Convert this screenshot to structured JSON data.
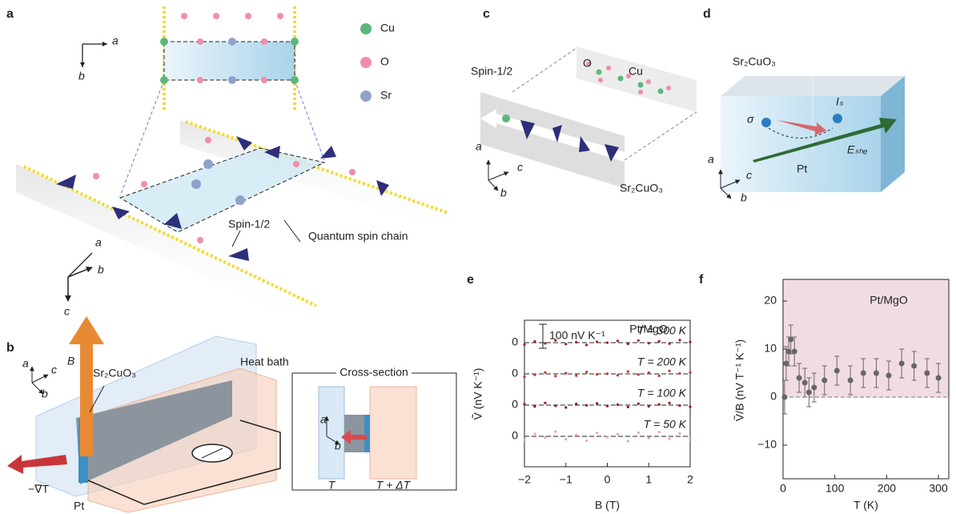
{
  "panel_labels": [
    "a",
    "b",
    "c",
    "d",
    "e",
    "f"
  ],
  "panel_a": {
    "legend": [
      {
        "label": "Cu",
        "color": "#5cb87a"
      },
      {
        "label": "O",
        "color": "#f28cab"
      },
      {
        "label": "Sr",
        "color": "#8ea2cc"
      }
    ],
    "axes_top": [
      "a",
      "b"
    ],
    "axes_bottom": [
      "a",
      "b",
      "c"
    ],
    "spin_label": "Spin-1/2",
    "chain_label": "Quantum spin chain"
  },
  "panel_b": {
    "axes": [
      "a",
      "b",
      "c"
    ],
    "field": "B",
    "crystal": "Sr₂CuO₃",
    "heat_bath": "Heat bath",
    "gradient": "−∇T",
    "electrode": "Pt",
    "inset": {
      "title": "Cross-section",
      "axes": [
        "a",
        "b"
      ],
      "cold": "T",
      "hot": "T + ΔT"
    }
  },
  "panel_c": {
    "spin_label": "Spin-1/2",
    "atom_o": "O",
    "atom_cu": "Cu",
    "crystal": "Sr₂CuO₃",
    "axes": [
      "a",
      "b",
      "c"
    ]
  },
  "panel_d": {
    "crystal": "Sr₂CuO₃",
    "spin": "σ",
    "current": "Iₛ",
    "field": "Eₛₕₑ",
    "electrode": "Pt",
    "axes": [
      "a",
      "b",
      "c"
    ]
  },
  "chart_data": [
    {
      "type": "scatter",
      "xlabel": "B (T)",
      "ylabel": "Ṽ (nV K⁻¹)",
      "annotation": "Pt/MgO",
      "scale_bar": {
        "value": 100,
        "label": "100 nV K⁻¹"
      },
      "xlim": [
        -2,
        2
      ],
      "xticks": [
        {
          "value": -2,
          "label": "−2"
        },
        {
          "value": -1,
          "label": "−1"
        },
        0,
        1,
        2
      ],
      "x": [
        -2,
        -1.75,
        -1.5,
        -1.25,
        -1,
        -0.75,
        -0.5,
        -0.25,
        0,
        0.25,
        0.5,
        0.75,
        1,
        1.25,
        1.5,
        1.75,
        2
      ],
      "series": [
        {
          "name": "T = 300 K",
          "color": "#a31f1f",
          "yticks": [
            0
          ],
          "values": [
            -8,
            5,
            -3,
            10,
            -6,
            2,
            -10,
            4,
            0,
            7,
            -5,
            9,
            -2,
            6,
            -4,
            11,
            3
          ]
        },
        {
          "name": "T = 200 K",
          "color": "#c0392b",
          "yticks": [
            0
          ],
          "values": [
            -12,
            -4,
            6,
            -9,
            3,
            -7,
            8,
            -2,
            1,
            -6,
            10,
            -3,
            5,
            -8,
            12,
            2,
            6
          ]
        },
        {
          "name": "T = 100 K",
          "color": "#8b1a1a",
          "yticks": [
            0
          ],
          "values": [
            4,
            -6,
            9,
            -3,
            -10,
            5,
            -1,
            7,
            -4,
            2,
            -8,
            6,
            -5,
            3,
            9,
            -2,
            -7
          ]
        },
        {
          "name": "T = 50 K",
          "color": "#f0a0a8",
          "yticks": [
            0
          ],
          "values": [
            -15,
            10,
            -5,
            20,
            -12,
            6,
            -18,
            14,
            -3,
            9,
            -20,
            15,
            -7,
            18,
            -10,
            12,
            -14
          ]
        }
      ]
    },
    {
      "type": "errorbar",
      "xlabel": "T (K)",
      "ylabel": "Ṽ/B (nV T⁻¹ K⁻¹)",
      "annotation": "Pt/MgO",
      "color": "#666666",
      "shade_color": "#f2dce3",
      "xlim": [
        0,
        320
      ],
      "ylim": [
        -17,
        24.5
      ],
      "xticks": [
        0,
        100,
        200,
        300
      ],
      "yticks": [
        {
          "value": -10,
          "label": "−10"
        },
        0,
        10,
        20
      ],
      "x": [
        3,
        6,
        11,
        15,
        22,
        31,
        42,
        50,
        60,
        80,
        104,
        130,
        155,
        180,
        204,
        229,
        253,
        278,
        300
      ],
      "values": [
        0,
        7,
        9.5,
        12,
        9.5,
        4,
        3,
        1,
        2,
        3.5,
        5.5,
        3.5,
        5,
        5,
        4.5,
        7,
        6.5,
        5,
        4
      ],
      "errors": [
        3.5,
        3.5,
        3,
        3,
        3,
        3,
        3,
        3,
        3,
        3,
        3,
        3,
        3,
        3,
        3,
        3,
        3,
        3,
        3
      ]
    }
  ]
}
